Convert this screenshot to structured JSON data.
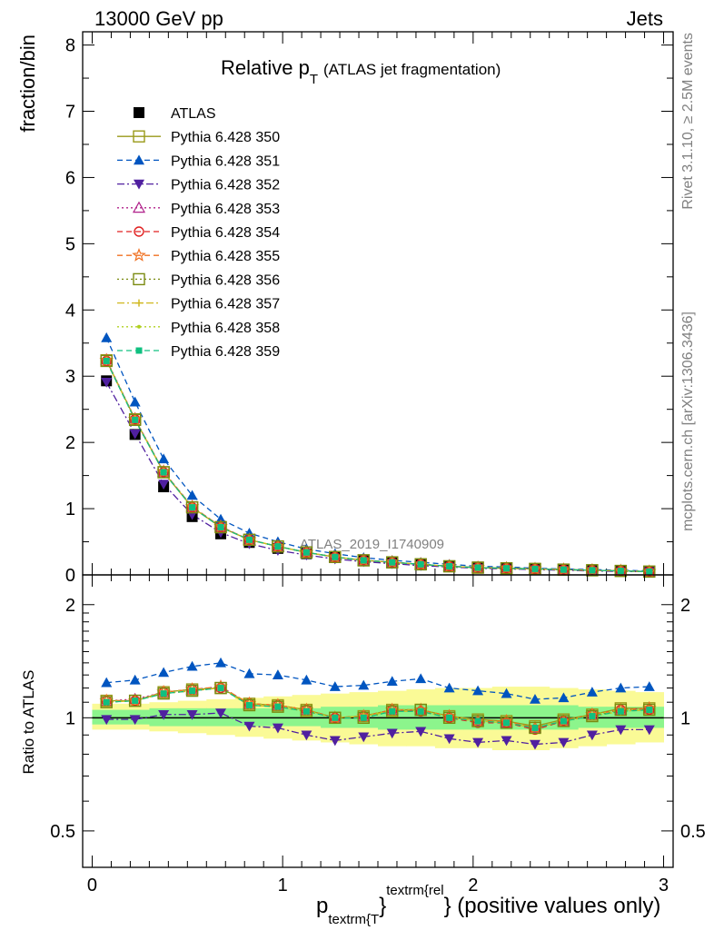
{
  "header": {
    "left": "13000 GeV pp",
    "right": "Jets"
  },
  "title": {
    "main": "Relative p",
    "sub": "T",
    "rest": "(ATLAS jet fragmentation)"
  },
  "side": {
    "top": "Rivet 3.1.10, ≥ 2.5M events",
    "bottom": "mcplots.cern.ch [arXiv:1306.3436]"
  },
  "watermark": "ATLAS_2019_I1740909",
  "ylabel_top": "fraction/bin",
  "ylabel_bottom": "Ratio to ATLAS",
  "xlabel": {
    "p": "p",
    "sub": "textrm{T",
    "brace": "}",
    "sup": "textrm{rel",
    "rest": "} (positive values only)"
  },
  "colors": {
    "data": "#000000",
    "band_inner": "#8cf58c",
    "band_outer": "#fafa96"
  },
  "chart_data": [
    {
      "type": "line",
      "panel": "main",
      "x": [
        0.075,
        0.225,
        0.375,
        0.525,
        0.675,
        0.825,
        0.975,
        1.125,
        1.275,
        1.425,
        1.575,
        1.725,
        1.875,
        2.025,
        2.175,
        2.325,
        2.475,
        2.625,
        2.775,
        2.925
      ],
      "xlim": [
        -0.05,
        3.05
      ],
      "ylim": [
        0,
        8.2
      ],
      "xticks": [
        "0",
        "1",
        "2",
        "3"
      ],
      "yticks": [
        "0",
        "1",
        "2",
        "3",
        "4",
        "5",
        "6",
        "7",
        "8"
      ],
      "legend_position": "top-left",
      "series": [
        {
          "name": "ATLAS",
          "color": "#000000",
          "marker": "square-filled",
          "dash": "none",
          "values": [
            2.93,
            2.12,
            1.33,
            0.88,
            0.62,
            0.49,
            0.4,
            0.32,
            0.27,
            0.22,
            0.18,
            0.15,
            0.13,
            0.11,
            0.1,
            0.09,
            0.08,
            0.07,
            0.06,
            0.05
          ]
        },
        {
          "name": "Pythia 6.428 350",
          "color": "#9a9a1a",
          "marker": "square-open",
          "dash": "solid",
          "values": [
            3.24,
            2.35,
            1.55,
            1.02,
            0.72,
            0.53,
            0.43,
            0.34,
            0.27,
            0.22,
            0.19,
            0.16,
            0.13,
            0.11,
            0.1,
            0.09,
            0.08,
            0.07,
            0.06,
            0.05
          ]
        },
        {
          "name": "Pythia 6.428 351",
          "color": "#0055c0",
          "marker": "triangle-up-filled",
          "dash": "dashed",
          "values": [
            3.58,
            2.61,
            1.75,
            1.2,
            0.84,
            0.63,
            0.5,
            0.39,
            0.32,
            0.26,
            0.22,
            0.19,
            0.16,
            0.13,
            0.12,
            0.1,
            0.09,
            0.08,
            0.07,
            0.06
          ]
        },
        {
          "name": "Pythia 6.428 352",
          "color": "#5020a0",
          "marker": "triangle-down-filled",
          "dash": "dashdot",
          "values": [
            2.91,
            2.13,
            1.37,
            0.91,
            0.64,
            0.47,
            0.37,
            0.3,
            0.24,
            0.2,
            0.17,
            0.14,
            0.12,
            0.1,
            0.09,
            0.08,
            0.07,
            0.06,
            0.05,
            0.05
          ]
        },
        {
          "name": "Pythia 6.428 353",
          "color": "#b0208a",
          "marker": "triangle-up-open",
          "dash": "dotted",
          "values": [
            3.25,
            2.36,
            1.56,
            1.03,
            0.73,
            0.53,
            0.43,
            0.34,
            0.27,
            0.22,
            0.19,
            0.16,
            0.13,
            0.11,
            0.1,
            0.09,
            0.08,
            0.07,
            0.06,
            0.05
          ]
        },
        {
          "name": "Pythia 6.428 354",
          "color": "#e02020",
          "marker": "circle-open",
          "dash": "dashed",
          "values": [
            3.23,
            2.35,
            1.55,
            1.02,
            0.72,
            0.53,
            0.43,
            0.34,
            0.27,
            0.22,
            0.19,
            0.16,
            0.13,
            0.11,
            0.1,
            0.09,
            0.08,
            0.07,
            0.06,
            0.05
          ]
        },
        {
          "name": "Pythia 6.428 355",
          "color": "#f07020",
          "marker": "star-open",
          "dash": "dashed",
          "values": [
            3.24,
            2.35,
            1.56,
            1.03,
            0.73,
            0.53,
            0.43,
            0.34,
            0.27,
            0.22,
            0.19,
            0.16,
            0.13,
            0.11,
            0.1,
            0.09,
            0.08,
            0.07,
            0.06,
            0.05
          ]
        },
        {
          "name": "Pythia 6.428 356",
          "color": "#7a8a10",
          "marker": "square-open",
          "dash": "dotted",
          "values": [
            3.23,
            2.34,
            1.55,
            1.02,
            0.72,
            0.53,
            0.43,
            0.34,
            0.27,
            0.22,
            0.19,
            0.16,
            0.13,
            0.11,
            0.1,
            0.09,
            0.08,
            0.07,
            0.06,
            0.05
          ]
        },
        {
          "name": "Pythia 6.428 357",
          "color": "#d0b820",
          "marker": "cross",
          "dash": "dashdot",
          "values": [
            3.23,
            2.35,
            1.55,
            1.02,
            0.72,
            0.53,
            0.43,
            0.34,
            0.27,
            0.22,
            0.19,
            0.16,
            0.13,
            0.11,
            0.1,
            0.09,
            0.08,
            0.07,
            0.06,
            0.05
          ]
        },
        {
          "name": "Pythia 6.428 358",
          "color": "#b0d020",
          "marker": "dot",
          "dash": "dotted",
          "values": [
            3.24,
            2.35,
            1.55,
            1.02,
            0.72,
            0.53,
            0.43,
            0.34,
            0.27,
            0.22,
            0.19,
            0.16,
            0.13,
            0.11,
            0.1,
            0.09,
            0.08,
            0.07,
            0.06,
            0.05
          ]
        },
        {
          "name": "Pythia 6.428 359",
          "color": "#10c080",
          "marker": "square-filled-small",
          "dash": "dashed",
          "values": [
            3.23,
            2.34,
            1.55,
            1.02,
            0.72,
            0.53,
            0.43,
            0.34,
            0.27,
            0.22,
            0.19,
            0.16,
            0.13,
            0.11,
            0.1,
            0.09,
            0.08,
            0.07,
            0.06,
            0.05
          ]
        }
      ]
    },
    {
      "type": "line",
      "panel": "ratio",
      "x": [
        0.075,
        0.225,
        0.375,
        0.525,
        0.675,
        0.825,
        0.975,
        1.125,
        1.275,
        1.425,
        1.575,
        1.725,
        1.875,
        2.025,
        2.175,
        2.325,
        2.475,
        2.625,
        2.775,
        2.925
      ],
      "xlim": [
        -0.05,
        3.05
      ],
      "ylim": [
        0.4,
        2.4
      ],
      "log_scale": true,
      "yticks": [
        "0.5",
        "1",
        "2"
      ],
      "band_inner": {
        "lo": [
          0.96,
          0.96,
          0.95,
          0.95,
          0.95,
          0.95,
          0.95,
          0.95,
          0.94,
          0.94,
          0.93,
          0.93,
          0.93,
          0.93,
          0.93,
          0.93,
          0.93,
          0.94,
          0.94,
          0.94
        ],
        "hi": [
          1.05,
          1.05,
          1.06,
          1.06,
          1.06,
          1.06,
          1.06,
          1.06,
          1.07,
          1.07,
          1.08,
          1.08,
          1.08,
          1.08,
          1.08,
          1.08,
          1.08,
          1.07,
          1.07,
          1.07
        ]
      },
      "band_outer": {
        "lo": [
          0.93,
          0.93,
          0.92,
          0.91,
          0.9,
          0.89,
          0.88,
          0.87,
          0.86,
          0.85,
          0.84,
          0.84,
          0.83,
          0.83,
          0.82,
          0.82,
          0.83,
          0.84,
          0.85,
          0.86
        ],
        "hi": [
          1.09,
          1.09,
          1.1,
          1.11,
          1.12,
          1.13,
          1.14,
          1.15,
          1.16,
          1.17,
          1.18,
          1.19,
          1.2,
          1.2,
          1.21,
          1.21,
          1.2,
          1.19,
          1.18,
          1.17
        ]
      },
      "series": [
        {
          "name": "Pythia 6.428 350",
          "color": "#9a9a1a",
          "marker": "square-open",
          "dash": "solid",
          "values": [
            1.11,
            1.11,
            1.17,
            1.19,
            1.2,
            1.09,
            1.08,
            1.05,
            1.0,
            1.01,
            1.05,
            1.05,
            1.01,
            0.99,
            0.98,
            0.95,
            0.99,
            1.02,
            1.06,
            1.06
          ]
        },
        {
          "name": "Pythia 6.428 351",
          "color": "#0055c0",
          "marker": "triangle-up-filled",
          "dash": "dashed",
          "values": [
            1.24,
            1.26,
            1.32,
            1.37,
            1.4,
            1.31,
            1.3,
            1.26,
            1.21,
            1.22,
            1.25,
            1.27,
            1.2,
            1.18,
            1.16,
            1.12,
            1.13,
            1.17,
            1.2,
            1.21
          ]
        },
        {
          "name": "Pythia 6.428 352",
          "color": "#5020a0",
          "marker": "triangle-down-filled",
          "dash": "dashdot",
          "values": [
            0.99,
            0.99,
            1.02,
            1.02,
            1.03,
            0.95,
            0.94,
            0.9,
            0.87,
            0.89,
            0.91,
            0.92,
            0.88,
            0.86,
            0.87,
            0.85,
            0.86,
            0.9,
            0.93,
            0.93
          ]
        },
        {
          "name": "Pythia 6.428 353",
          "color": "#b0208a",
          "marker": "triangle-up-open",
          "dash": "dotted",
          "values": [
            1.11,
            1.12,
            1.17,
            1.19,
            1.21,
            1.09,
            1.08,
            1.05,
            1.0,
            1.01,
            1.05,
            1.05,
            1.01,
            0.98,
            0.97,
            0.94,
            0.98,
            1.02,
            1.05,
            1.06
          ]
        },
        {
          "name": "Pythia 6.428 354",
          "color": "#e02020",
          "marker": "circle-open",
          "dash": "dashed",
          "values": [
            1.11,
            1.11,
            1.17,
            1.19,
            1.2,
            1.09,
            1.08,
            1.05,
            1.0,
            1.01,
            1.05,
            1.04,
            1.0,
            0.97,
            0.97,
            0.93,
            0.98,
            1.02,
            1.05,
            1.05
          ]
        },
        {
          "name": "Pythia 6.428 355",
          "color": "#f07020",
          "marker": "star-open",
          "dash": "dashed",
          "values": [
            1.11,
            1.11,
            1.17,
            1.19,
            1.21,
            1.09,
            1.08,
            1.05,
            1.0,
            1.01,
            1.05,
            1.05,
            1.01,
            0.98,
            0.98,
            0.94,
            0.98,
            1.02,
            1.05,
            1.06
          ]
        },
        {
          "name": "Pythia 6.428 356",
          "color": "#7a8a10",
          "marker": "square-open",
          "dash": "dotted",
          "values": [
            1.1,
            1.11,
            1.16,
            1.18,
            1.2,
            1.08,
            1.07,
            1.04,
            1.0,
            1.0,
            1.04,
            1.05,
            1.0,
            0.98,
            0.97,
            0.94,
            0.98,
            1.01,
            1.05,
            1.05
          ]
        },
        {
          "name": "Pythia 6.428 357",
          "color": "#d0b820",
          "marker": "cross",
          "dash": "dashdot",
          "values": [
            1.1,
            1.11,
            1.16,
            1.18,
            1.2,
            1.08,
            1.07,
            1.04,
            1.0,
            1.01,
            1.04,
            1.04,
            1.0,
            0.98,
            0.97,
            0.94,
            0.98,
            1.01,
            1.04,
            1.05
          ]
        },
        {
          "name": "Pythia 6.428 358",
          "color": "#b0d020",
          "marker": "dot",
          "dash": "dotted",
          "values": [
            1.11,
            1.11,
            1.17,
            1.19,
            1.2,
            1.09,
            1.08,
            1.05,
            1.0,
            1.01,
            1.05,
            1.05,
            1.01,
            0.98,
            0.97,
            0.94,
            0.98,
            1.02,
            1.05,
            1.05
          ]
        },
        {
          "name": "Pythia 6.428 359",
          "color": "#10c080",
          "marker": "square-filled-small",
          "dash": "dashed",
          "values": [
            1.1,
            1.11,
            1.16,
            1.18,
            1.2,
            1.08,
            1.07,
            1.04,
            1.0,
            1.0,
            1.04,
            1.04,
            1.0,
            0.98,
            0.97,
            0.94,
            0.98,
            1.01,
            1.04,
            1.05
          ]
        }
      ]
    }
  ]
}
